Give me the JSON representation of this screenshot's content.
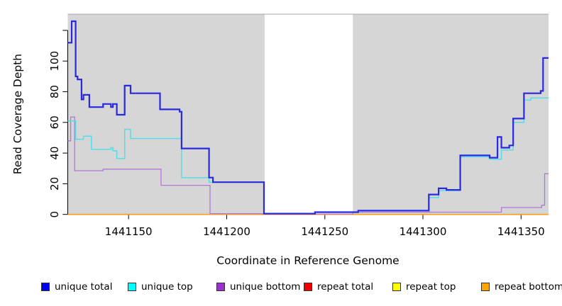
{
  "chart_data": {
    "type": "line",
    "subtype": "step",
    "title": "",
    "xlabel": "Coordinate in Reference Genome",
    "ylabel": "Read Coverage Depth",
    "xlim": [
      1441119,
      1441364
    ],
    "ylim": [
      0,
      130.6
    ],
    "x_ticks": [
      1441150,
      1441200,
      1441250,
      1441300,
      1441350
    ],
    "x_tick_labels": [
      "1441150",
      "1441200",
      "1441250",
      "1441300",
      "1441350"
    ],
    "y_ticks": [
      0,
      20,
      40,
      60,
      80,
      100
    ],
    "y_tick_labels": [
      "0",
      "20",
      "40",
      "60",
      "80",
      "100"
    ],
    "y_unlabeled_tick": 120,
    "grid": false,
    "legend_position": "bottom",
    "panel_background": {
      "shade_color": "#d6d6d6",
      "gap_color": "#ffffff",
      "top_border_color": "#a8a8a8",
      "shaded_regions": [
        {
          "from": 1441119,
          "to": 1441219.3
        },
        {
          "from": 1441264.3,
          "to": 1441364
        }
      ]
    },
    "series": [
      {
        "name": "unique total",
        "color": "#2929dd",
        "line_width": 2.2,
        "points": [
          [
            1441119,
            112
          ],
          [
            1441121,
            126
          ],
          [
            1441123,
            90
          ],
          [
            1441124,
            88
          ],
          [
            1441126,
            75
          ],
          [
            1441127,
            78
          ],
          [
            1441130,
            70
          ],
          [
            1441137,
            72
          ],
          [
            1441141,
            70
          ],
          [
            1441142,
            72
          ],
          [
            1441144,
            65
          ],
          [
            1441148,
            84
          ],
          [
            1441151,
            79
          ],
          [
            1441166,
            68.5
          ],
          [
            1441176,
            67
          ],
          [
            1441177,
            43
          ],
          [
            1441191,
            24
          ],
          [
            1441193,
            21
          ],
          [
            1441219,
            0.5
          ],
          [
            1441245,
            1.5
          ],
          [
            1441267,
            2.5
          ],
          [
            1441303,
            13
          ],
          [
            1441308,
            17
          ],
          [
            1441312,
            16
          ],
          [
            1441319,
            38.5
          ],
          [
            1441334,
            37
          ],
          [
            1441338,
            50.5
          ],
          [
            1441340,
            43.5
          ],
          [
            1441344,
            45
          ],
          [
            1441346,
            62.5
          ],
          [
            1441351.5,
            79
          ],
          [
            1441360,
            80.5
          ],
          [
            1441361.2,
            102
          ],
          [
            1441364,
            102
          ]
        ]
      },
      {
        "name": "unique top",
        "color": "#55dde8",
        "line_width": 1.5,
        "points": [
          [
            1441119,
            61
          ],
          [
            1441123,
            49
          ],
          [
            1441127,
            51
          ],
          [
            1441131,
            42.5
          ],
          [
            1441141,
            43.5
          ],
          [
            1441142,
            41.5
          ],
          [
            1441144,
            36.5
          ],
          [
            1441148,
            55.5
          ],
          [
            1441151,
            49.5
          ],
          [
            1441177,
            24
          ],
          [
            1441191,
            21
          ],
          [
            1441219,
            0.4
          ],
          [
            1441245,
            1.3
          ],
          [
            1441267,
            2.3
          ],
          [
            1441303,
            11
          ],
          [
            1441308,
            15.5
          ],
          [
            1441319,
            37.5
          ],
          [
            1441334,
            36
          ],
          [
            1441340,
            42
          ],
          [
            1441346,
            60
          ],
          [
            1441351.5,
            74.5
          ],
          [
            1441355,
            76
          ],
          [
            1441364,
            76
          ]
        ]
      },
      {
        "name": "unique bottom",
        "color": "#b177d9",
        "line_width": 1.3,
        "points": [
          [
            1441119,
            48
          ],
          [
            1441120.5,
            63.5
          ],
          [
            1441122.5,
            28.5
          ],
          [
            1441137,
            29.5
          ],
          [
            1441166.5,
            19
          ],
          [
            1441191.5,
            0.5
          ],
          [
            1441219,
            0.3
          ],
          [
            1441264.3,
            1.5
          ],
          [
            1441340,
            4.5
          ],
          [
            1441360.5,
            6
          ],
          [
            1441362,
            26.5
          ],
          [
            1441364,
            26.5
          ]
        ]
      },
      {
        "name": "repeat total",
        "color": "#e23b3b",
        "line_width": 1.2,
        "points": [
          [
            1441119,
            0
          ],
          [
            1441364,
            0
          ]
        ]
      },
      {
        "name": "repeat top",
        "color": "#f5f51a",
        "line_width": 1.2,
        "points": [
          [
            1441119,
            0
          ],
          [
            1441364,
            0
          ]
        ]
      },
      {
        "name": "repeat bottom",
        "color": "#ff9e1b",
        "line_width": 1.6,
        "points": [
          [
            1441119,
            0
          ],
          [
            1441364,
            0
          ]
        ]
      }
    ],
    "draw_order": [
      3,
      4,
      5,
      2,
      1,
      0
    ],
    "legend": [
      {
        "label": "unique total",
        "swatch": "#0000ee"
      },
      {
        "label": "unique top",
        "swatch": "#00ffff"
      },
      {
        "label": "unique bottom",
        "swatch": "#9932cc"
      },
      {
        "label": "repeat total",
        "swatch": "#ee0000"
      },
      {
        "label": "repeat top",
        "swatch": "#ffff00"
      },
      {
        "label": "repeat bottom",
        "swatch": "#ffa500"
      }
    ]
  }
}
